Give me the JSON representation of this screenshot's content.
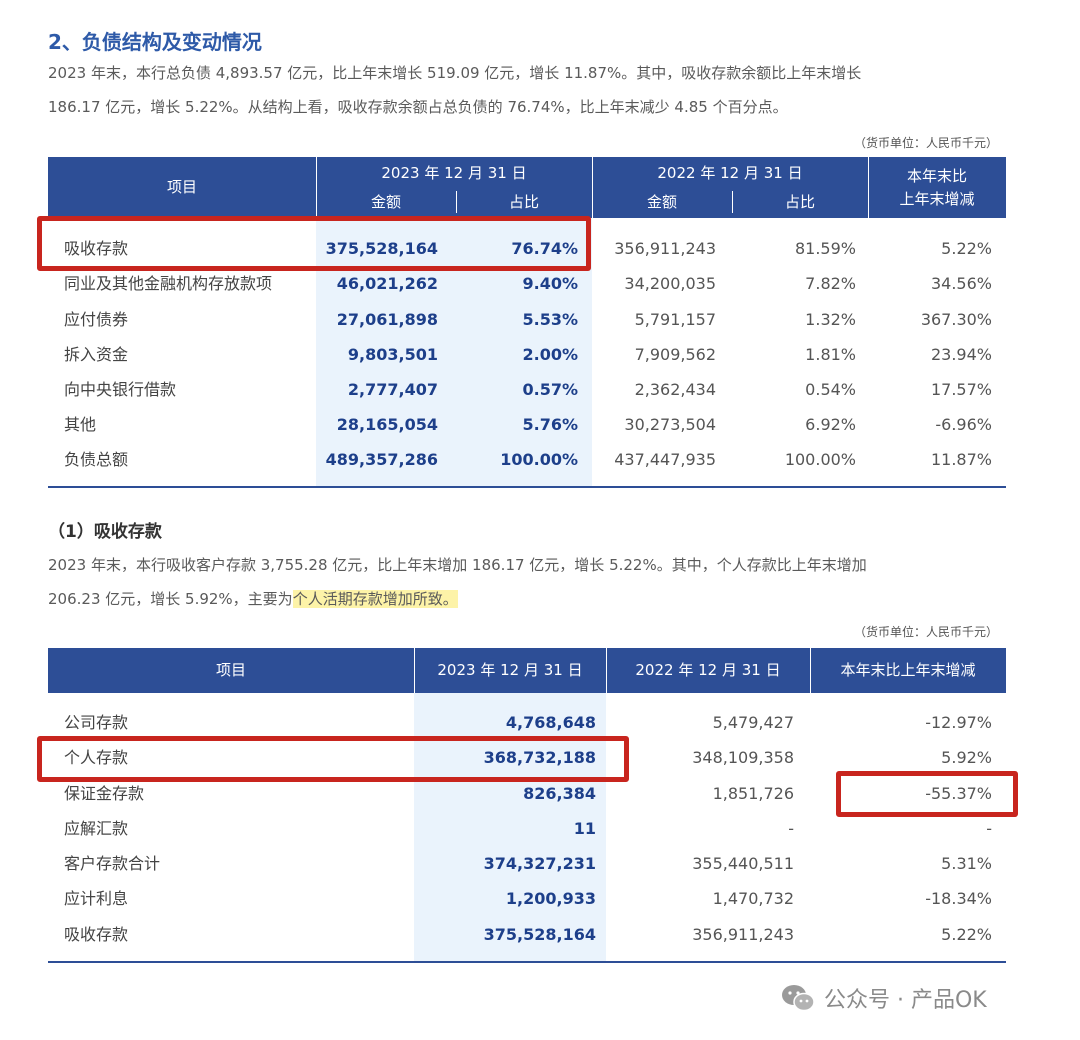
{
  "section": {
    "title": "2、负债结构及变动情况",
    "para_line1": "2023 年末，本行总负债 4,893.57 亿元，比上年末增长 519.09 亿元，增长 11.87%。其中，吸收存款余额比上年末增长",
    "para_line2": "186.17 亿元，增长 5.22%。从结构上看，吸收存款余额占总负债的 76.74%，比上年末减少 4.85 个百分点。",
    "unit": "（货币单位：人民币千元）"
  },
  "table1": {
    "headers": {
      "item": "项目",
      "y2023": "2023 年 12 月 31 日",
      "y2022": "2022 年 12 月 31 日",
      "amount": "金额",
      "share": "占比",
      "change_line1": "本年末比",
      "change_line2": "上年末增减"
    },
    "rows": [
      {
        "name": "吸收存款",
        "amt2023": "375,528,164",
        "pct2023": "76.74%",
        "amt2022": "356,911,243",
        "pct2022": "81.59%",
        "change": "5.22%"
      },
      {
        "name": "同业及其他金融机构存放款项",
        "amt2023": "46,021,262",
        "pct2023": "9.40%",
        "amt2022": "34,200,035",
        "pct2022": "7.82%",
        "change": "34.56%"
      },
      {
        "name": "应付债券",
        "amt2023": "27,061,898",
        "pct2023": "5.53%",
        "amt2022": "5,791,157",
        "pct2022": "1.32%",
        "change": "367.30%"
      },
      {
        "name": "拆入资金",
        "amt2023": "9,803,501",
        "pct2023": "2.00%",
        "amt2022": "7,909,562",
        "pct2022": "1.81%",
        "change": "23.94%"
      },
      {
        "name": "向中央银行借款",
        "amt2023": "2,777,407",
        "pct2023": "0.57%",
        "amt2022": "2,362,434",
        "pct2022": "0.54%",
        "change": "17.57%"
      },
      {
        "name": "其他",
        "amt2023": "28,165,054",
        "pct2023": "5.76%",
        "amt2022": "30,273,504",
        "pct2022": "6.92%",
        "change": "-6.96%"
      },
      {
        "name": "负债总额",
        "amt2023": "489,357,286",
        "pct2023": "100.00%",
        "amt2022": "437,447,935",
        "pct2022": "100.00%",
        "change": "11.87%"
      }
    ]
  },
  "subsection": {
    "title": "（1）吸收存款",
    "para_line1": "2023 年末，本行吸收客户存款 3,755.28 亿元，比上年末增加 186.17 亿元，增长 5.22%。其中，个人存款比上年末增加",
    "para_line2_plain": "206.23 亿元，增长 5.92%，主要为",
    "para_line2_highlight": "个人活期存款增加所致。",
    "unit": "（货币单位：人民币千元）"
  },
  "table2": {
    "headers": {
      "item": "项目",
      "y2023": "2023 年 12 月 31 日",
      "y2022": "2022 年 12 月 31 日",
      "change": "本年末比上年末增减"
    },
    "rows": [
      {
        "name": "公司存款",
        "v2023": "4,768,648",
        "v2022": "5,479,427",
        "change": "-12.97%"
      },
      {
        "name": "个人存款",
        "v2023": "368,732,188",
        "v2022": "348,109,358",
        "change": "5.92%"
      },
      {
        "name": "保证金存款",
        "v2023": "826,384",
        "v2022": "1,851,726",
        "change": "-55.37%"
      },
      {
        "name": "应解汇款",
        "v2023": "11",
        "v2022": "-",
        "change": "-"
      },
      {
        "name": "客户存款合计",
        "v2023": "374,327,231",
        "v2022": "355,440,511",
        "change": "5.31%"
      },
      {
        "name": "应计利息",
        "v2023": "1,200,933",
        "v2022": "1,470,732",
        "change": "-18.34%"
      },
      {
        "name": "吸收存款",
        "v2023": "375,528,164",
        "v2022": "356,911,243",
        "change": "5.22%"
      }
    ]
  },
  "watermark": {
    "icon": "wechat-icon",
    "text": "公众号 · 产品OK"
  }
}
